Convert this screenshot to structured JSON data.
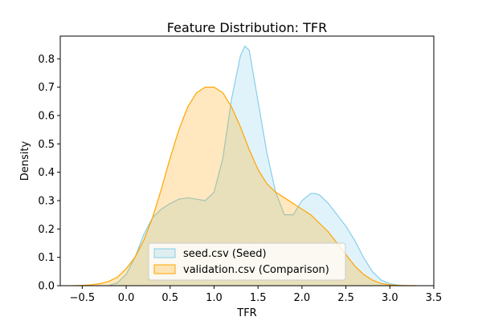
{
  "chart_data": {
    "type": "area",
    "title": "Feature Distribution: TFR",
    "xlabel": "TFR",
    "ylabel": "Density",
    "xlim": [
      -0.75,
      3.5
    ],
    "ylim": [
      0,
      0.88
    ],
    "x_ticks": [
      -0.5,
      0.0,
      0.5,
      1.0,
      1.5,
      2.0,
      2.5,
      3.0,
      3.5
    ],
    "x_tick_labels": [
      "−0.5",
      "0.0",
      "0.5",
      "1.0",
      "1.5",
      "2.0",
      "2.5",
      "3.0",
      "3.5"
    ],
    "y_ticks": [
      0.0,
      0.1,
      0.2,
      0.3,
      0.4,
      0.5,
      0.6,
      0.7,
      0.8
    ],
    "y_tick_labels": [
      "0.0",
      "0.1",
      "0.2",
      "0.3",
      "0.4",
      "0.5",
      "0.6",
      "0.7",
      "0.8"
    ],
    "grid": false,
    "legend_position": "bottom-center",
    "series": [
      {
        "name": "seed.csv (Seed)",
        "color": "#87ceeb",
        "x": [
          -0.2,
          -0.1,
          0.0,
          0.1,
          0.2,
          0.3,
          0.4,
          0.5,
          0.6,
          0.7,
          0.8,
          0.9,
          1.0,
          1.1,
          1.2,
          1.3,
          1.35,
          1.4,
          1.5,
          1.6,
          1.7,
          1.8,
          1.9,
          2.0,
          2.1,
          2.15,
          2.2,
          2.3,
          2.4,
          2.5,
          2.6,
          2.7,
          2.8,
          2.9,
          3.0,
          3.1,
          3.2
        ],
        "y": [
          0.0,
          0.01,
          0.04,
          0.1,
          0.18,
          0.24,
          0.27,
          0.29,
          0.305,
          0.31,
          0.305,
          0.3,
          0.33,
          0.45,
          0.66,
          0.81,
          0.845,
          0.83,
          0.65,
          0.47,
          0.33,
          0.25,
          0.25,
          0.3,
          0.325,
          0.325,
          0.32,
          0.29,
          0.25,
          0.21,
          0.16,
          0.1,
          0.05,
          0.02,
          0.007,
          0.002,
          0.0
        ]
      },
      {
        "name": "validation.csv (Comparison)",
        "color": "#ffa500",
        "x": [
          -0.6,
          -0.5,
          -0.4,
          -0.3,
          -0.2,
          -0.1,
          0.0,
          0.1,
          0.2,
          0.3,
          0.4,
          0.5,
          0.6,
          0.7,
          0.8,
          0.9,
          1.0,
          1.1,
          1.2,
          1.3,
          1.4,
          1.5,
          1.6,
          1.7,
          1.8,
          1.9,
          2.0,
          2.1,
          2.2,
          2.3,
          2.4,
          2.5,
          2.6,
          2.7,
          2.8,
          2.9,
          3.0,
          3.1,
          3.2,
          3.3
        ],
        "y": [
          0.0,
          0.001,
          0.003,
          0.007,
          0.015,
          0.03,
          0.06,
          0.1,
          0.16,
          0.24,
          0.34,
          0.45,
          0.55,
          0.63,
          0.68,
          0.7,
          0.7,
          0.68,
          0.63,
          0.56,
          0.48,
          0.41,
          0.36,
          0.33,
          0.31,
          0.29,
          0.27,
          0.25,
          0.22,
          0.19,
          0.15,
          0.11,
          0.07,
          0.04,
          0.02,
          0.008,
          0.003,
          0.001,
          0.0003,
          0.0
        ]
      }
    ]
  }
}
